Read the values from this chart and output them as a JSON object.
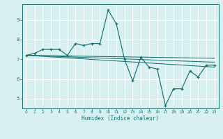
{
  "title": "",
  "xlabel": "Humidex (Indice chaleur)",
  "bg_color": "#d8f0f0",
  "grid_color": "#ffffff",
  "line_color": "#1a7070",
  "xlim": [
    -0.5,
    23.5
  ],
  "ylim": [
    4.5,
    9.8
  ],
  "yticks": [
    5,
    6,
    7,
    8,
    9
  ],
  "xticks": [
    0,
    1,
    2,
    3,
    4,
    5,
    6,
    7,
    8,
    9,
    10,
    11,
    12,
    13,
    14,
    15,
    16,
    17,
    18,
    19,
    20,
    21,
    22,
    23
  ],
  "series": [
    [
      0,
      7.2
    ],
    [
      1,
      7.3
    ],
    [
      2,
      7.5
    ],
    [
      3,
      7.5
    ],
    [
      4,
      7.5
    ],
    [
      5,
      7.2
    ],
    [
      6,
      7.8
    ],
    [
      7,
      7.7
    ],
    [
      8,
      7.8
    ],
    [
      9,
      7.8
    ],
    [
      10,
      9.5
    ],
    [
      11,
      8.8
    ],
    [
      12,
      7.0
    ],
    [
      13,
      5.9
    ],
    [
      14,
      7.1
    ],
    [
      15,
      6.6
    ],
    [
      16,
      6.5
    ],
    [
      17,
      4.65
    ],
    [
      18,
      5.5
    ],
    [
      19,
      5.5
    ],
    [
      20,
      6.4
    ],
    [
      21,
      6.1
    ],
    [
      22,
      6.7
    ],
    [
      23,
      6.7
    ]
  ],
  "trend_lines": [
    [
      [
        0,
        7.2
      ],
      [
        23,
        7.05
      ]
    ],
    [
      [
        0,
        7.2
      ],
      [
        23,
        6.85
      ]
    ],
    [
      [
        0,
        7.2
      ],
      [
        23,
        6.6
      ]
    ]
  ]
}
